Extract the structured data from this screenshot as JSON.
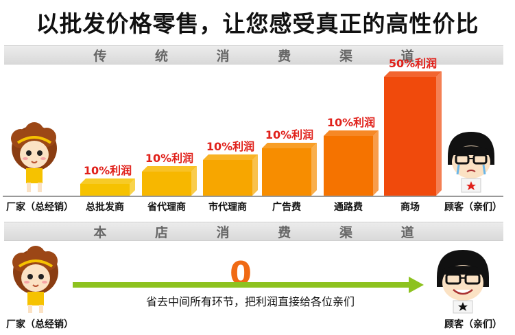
{
  "headline": "以批发价格零售，让您感受真正的高性价比",
  "traditional": {
    "band_label": "传统消费渠道",
    "band_chars": [
      "传",
      "统",
      "消",
      "费",
      "渠",
      "道"
    ],
    "nodes": [
      "厂家（总经销）",
      "总批发商",
      "省代理商",
      "市代理商",
      "广告费",
      "通路费",
      "商场",
      "顾客（亲们）"
    ]
  },
  "store": {
    "band_label": "本店消费渠道",
    "band_chars": [
      "本",
      "店",
      "消",
      "费",
      "渠",
      "道"
    ],
    "profit_value": "0",
    "arrow_note": "省去中间所有环节，把利润直接给各位亲们",
    "start_node": "厂家（总经销）",
    "end_node": "顾客（亲们）"
  },
  "chart_data": {
    "type": "bar",
    "categories": [
      "总批发商",
      "省代理商",
      "市代理商",
      "广告费",
      "通路费",
      "商场"
    ],
    "values": [
      10,
      10,
      10,
      10,
      10,
      50
    ],
    "data_labels": [
      "10%利润",
      "10%利润",
      "10%利润",
      "10%利润",
      "10%利润",
      "50%利润"
    ],
    "title": "",
    "xlabel": "",
    "ylabel": "",
    "colors": [
      "#f6c200",
      "#f7b700",
      "#f7a600",
      "#f78d00",
      "#f57300",
      "#f04a0c"
    ],
    "label_color": "#e0201a"
  },
  "colors": {
    "arrow": "#8dc21f",
    "band": "#dcdcdc"
  }
}
